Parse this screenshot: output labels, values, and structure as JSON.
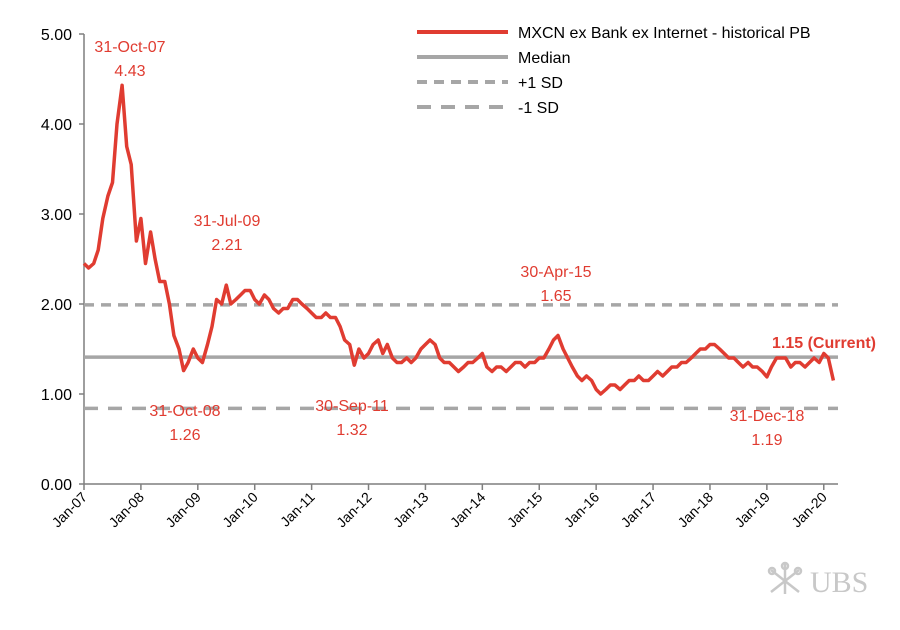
{
  "chart_data": {
    "type": "line",
    "ylim": [
      0,
      5
    ],
    "yticks": [
      "0.00",
      "1.00",
      "2.00",
      "3.00",
      "4.00",
      "5.00"
    ],
    "xticks": [
      "Jan-07",
      "Jan-08",
      "Jan-09",
      "Jan-10",
      "Jan-11",
      "Jan-12",
      "Jan-13",
      "Jan-14",
      "Jan-15",
      "Jan-16",
      "Jan-17",
      "Jan-18",
      "Jan-19",
      "Jan-20"
    ],
    "x_start": 2007.0,
    "x_end": 2020.25,
    "grid": false,
    "legend_position": "top-right",
    "series": [
      {
        "name": "MXCN ex Bank ex Internet - historical PB",
        "color": "#e03c31",
        "points": [
          [
            2007.0,
            2.45
          ],
          [
            2007.08,
            2.4
          ],
          [
            2007.17,
            2.45
          ],
          [
            2007.25,
            2.6
          ],
          [
            2007.33,
            2.95
          ],
          [
            2007.42,
            3.2
          ],
          [
            2007.5,
            3.35
          ],
          [
            2007.58,
            4.0
          ],
          [
            2007.67,
            4.43
          ],
          [
            2007.75,
            3.75
          ],
          [
            2007.83,
            3.55
          ],
          [
            2007.92,
            2.7
          ],
          [
            2008.0,
            2.95
          ],
          [
            2008.08,
            2.45
          ],
          [
            2008.17,
            2.8
          ],
          [
            2008.25,
            2.5
          ],
          [
            2008.33,
            2.25
          ],
          [
            2008.42,
            2.25
          ],
          [
            2008.5,
            2.0
          ],
          [
            2008.58,
            1.65
          ],
          [
            2008.67,
            1.5
          ],
          [
            2008.75,
            1.26
          ],
          [
            2008.83,
            1.35
          ],
          [
            2008.92,
            1.5
          ],
          [
            2009.0,
            1.4
          ],
          [
            2009.08,
            1.35
          ],
          [
            2009.17,
            1.55
          ],
          [
            2009.25,
            1.75
          ],
          [
            2009.33,
            2.05
          ],
          [
            2009.42,
            2.0
          ],
          [
            2009.5,
            2.21
          ],
          [
            2009.58,
            2.0
          ],
          [
            2009.67,
            2.05
          ],
          [
            2009.75,
            2.1
          ],
          [
            2009.83,
            2.15
          ],
          [
            2009.92,
            2.15
          ],
          [
            2010.0,
            2.05
          ],
          [
            2010.08,
            2.0
          ],
          [
            2010.17,
            2.1
          ],
          [
            2010.25,
            2.05
          ],
          [
            2010.33,
            1.95
          ],
          [
            2010.42,
            1.9
          ],
          [
            2010.5,
            1.95
          ],
          [
            2010.58,
            1.95
          ],
          [
            2010.67,
            2.05
          ],
          [
            2010.75,
            2.05
          ],
          [
            2010.83,
            2.0
          ],
          [
            2010.92,
            1.95
          ],
          [
            2011.0,
            1.9
          ],
          [
            2011.08,
            1.85
          ],
          [
            2011.17,
            1.85
          ],
          [
            2011.25,
            1.9
          ],
          [
            2011.33,
            1.85
          ],
          [
            2011.42,
            1.85
          ],
          [
            2011.5,
            1.75
          ],
          [
            2011.58,
            1.6
          ],
          [
            2011.67,
            1.55
          ],
          [
            2011.75,
            1.32
          ],
          [
            2011.83,
            1.5
          ],
          [
            2011.92,
            1.4
          ],
          [
            2012.0,
            1.45
          ],
          [
            2012.08,
            1.55
          ],
          [
            2012.17,
            1.6
          ],
          [
            2012.25,
            1.45
          ],
          [
            2012.33,
            1.55
          ],
          [
            2012.42,
            1.4
          ],
          [
            2012.5,
            1.35
          ],
          [
            2012.58,
            1.35
          ],
          [
            2012.67,
            1.4
          ],
          [
            2012.75,
            1.35
          ],
          [
            2012.83,
            1.4
          ],
          [
            2012.92,
            1.5
          ],
          [
            2013.0,
            1.55
          ],
          [
            2013.08,
            1.6
          ],
          [
            2013.17,
            1.55
          ],
          [
            2013.25,
            1.4
          ],
          [
            2013.33,
            1.35
          ],
          [
            2013.42,
            1.35
          ],
          [
            2013.5,
            1.3
          ],
          [
            2013.58,
            1.25
          ],
          [
            2013.67,
            1.3
          ],
          [
            2013.75,
            1.35
          ],
          [
            2013.83,
            1.35
          ],
          [
            2013.92,
            1.4
          ],
          [
            2014.0,
            1.45
          ],
          [
            2014.08,
            1.3
          ],
          [
            2014.17,
            1.25
          ],
          [
            2014.25,
            1.3
          ],
          [
            2014.33,
            1.3
          ],
          [
            2014.42,
            1.25
          ],
          [
            2014.5,
            1.3
          ],
          [
            2014.58,
            1.35
          ],
          [
            2014.67,
            1.35
          ],
          [
            2014.75,
            1.3
          ],
          [
            2014.83,
            1.35
          ],
          [
            2014.92,
            1.35
          ],
          [
            2015.0,
            1.4
          ],
          [
            2015.08,
            1.4
          ],
          [
            2015.17,
            1.5
          ],
          [
            2015.25,
            1.6
          ],
          [
            2015.33,
            1.65
          ],
          [
            2015.42,
            1.5
          ],
          [
            2015.5,
            1.4
          ],
          [
            2015.58,
            1.3
          ],
          [
            2015.67,
            1.2
          ],
          [
            2015.75,
            1.15
          ],
          [
            2015.83,
            1.2
          ],
          [
            2015.92,
            1.15
          ],
          [
            2016.0,
            1.05
          ],
          [
            2016.08,
            1.0
          ],
          [
            2016.17,
            1.05
          ],
          [
            2016.25,
            1.1
          ],
          [
            2016.33,
            1.1
          ],
          [
            2016.42,
            1.05
          ],
          [
            2016.5,
            1.1
          ],
          [
            2016.58,
            1.15
          ],
          [
            2016.67,
            1.15
          ],
          [
            2016.75,
            1.2
          ],
          [
            2016.83,
            1.15
          ],
          [
            2016.92,
            1.15
          ],
          [
            2017.0,
            1.2
          ],
          [
            2017.08,
            1.25
          ],
          [
            2017.17,
            1.2
          ],
          [
            2017.25,
            1.25
          ],
          [
            2017.33,
            1.3
          ],
          [
            2017.42,
            1.3
          ],
          [
            2017.5,
            1.35
          ],
          [
            2017.58,
            1.35
          ],
          [
            2017.67,
            1.4
          ],
          [
            2017.75,
            1.45
          ],
          [
            2017.83,
            1.5
          ],
          [
            2017.92,
            1.5
          ],
          [
            2018.0,
            1.55
          ],
          [
            2018.08,
            1.55
          ],
          [
            2018.17,
            1.5
          ],
          [
            2018.25,
            1.45
          ],
          [
            2018.33,
            1.4
          ],
          [
            2018.42,
            1.4
          ],
          [
            2018.5,
            1.35
          ],
          [
            2018.58,
            1.3
          ],
          [
            2018.67,
            1.35
          ],
          [
            2018.75,
            1.3
          ],
          [
            2018.83,
            1.3
          ],
          [
            2018.92,
            1.25
          ],
          [
            2019.0,
            1.19
          ],
          [
            2019.08,
            1.3
          ],
          [
            2019.17,
            1.4
          ],
          [
            2019.25,
            1.4
          ],
          [
            2019.33,
            1.4
          ],
          [
            2019.42,
            1.3
          ],
          [
            2019.5,
            1.35
          ],
          [
            2019.58,
            1.35
          ],
          [
            2019.67,
            1.3
          ],
          [
            2019.75,
            1.35
          ],
          [
            2019.83,
            1.4
          ],
          [
            2019.92,
            1.35
          ],
          [
            2020.0,
            1.45
          ],
          [
            2020.08,
            1.4
          ],
          [
            2020.17,
            1.15
          ]
        ]
      },
      {
        "name": "Median",
        "color": "#a6a6a6",
        "style": "solid",
        "value": 1.41
      },
      {
        "name": "+1 SD",
        "color": "#a6a6a6",
        "style": "dashed",
        "value": 1.99
      },
      {
        "name": "-1 SD",
        "color": "#a6a6a6",
        "style": "dashed",
        "value": 0.84
      }
    ],
    "annotations": [
      {
        "lines": [
          "31-Oct-07",
          "4.43"
        ],
        "bold": false
      },
      {
        "lines": [
          "31-Jul-09",
          "2.21"
        ],
        "bold": false
      },
      {
        "lines": [
          "30-Apr-15",
          "1.65"
        ],
        "bold": false
      },
      {
        "lines": [
          "31-Oct-08",
          "1.26"
        ],
        "bold": false
      },
      {
        "lines": [
          "30-Sep-11",
          "1.32"
        ],
        "bold": false
      },
      {
        "lines": [
          "31-Dec-18",
          "1.19"
        ],
        "bold": false
      },
      {
        "lines": [
          "1.15 (Current)"
        ],
        "bold": true
      }
    ]
  },
  "watermark": {
    "text": "UBS",
    "icon": "keys-logo-icon"
  }
}
